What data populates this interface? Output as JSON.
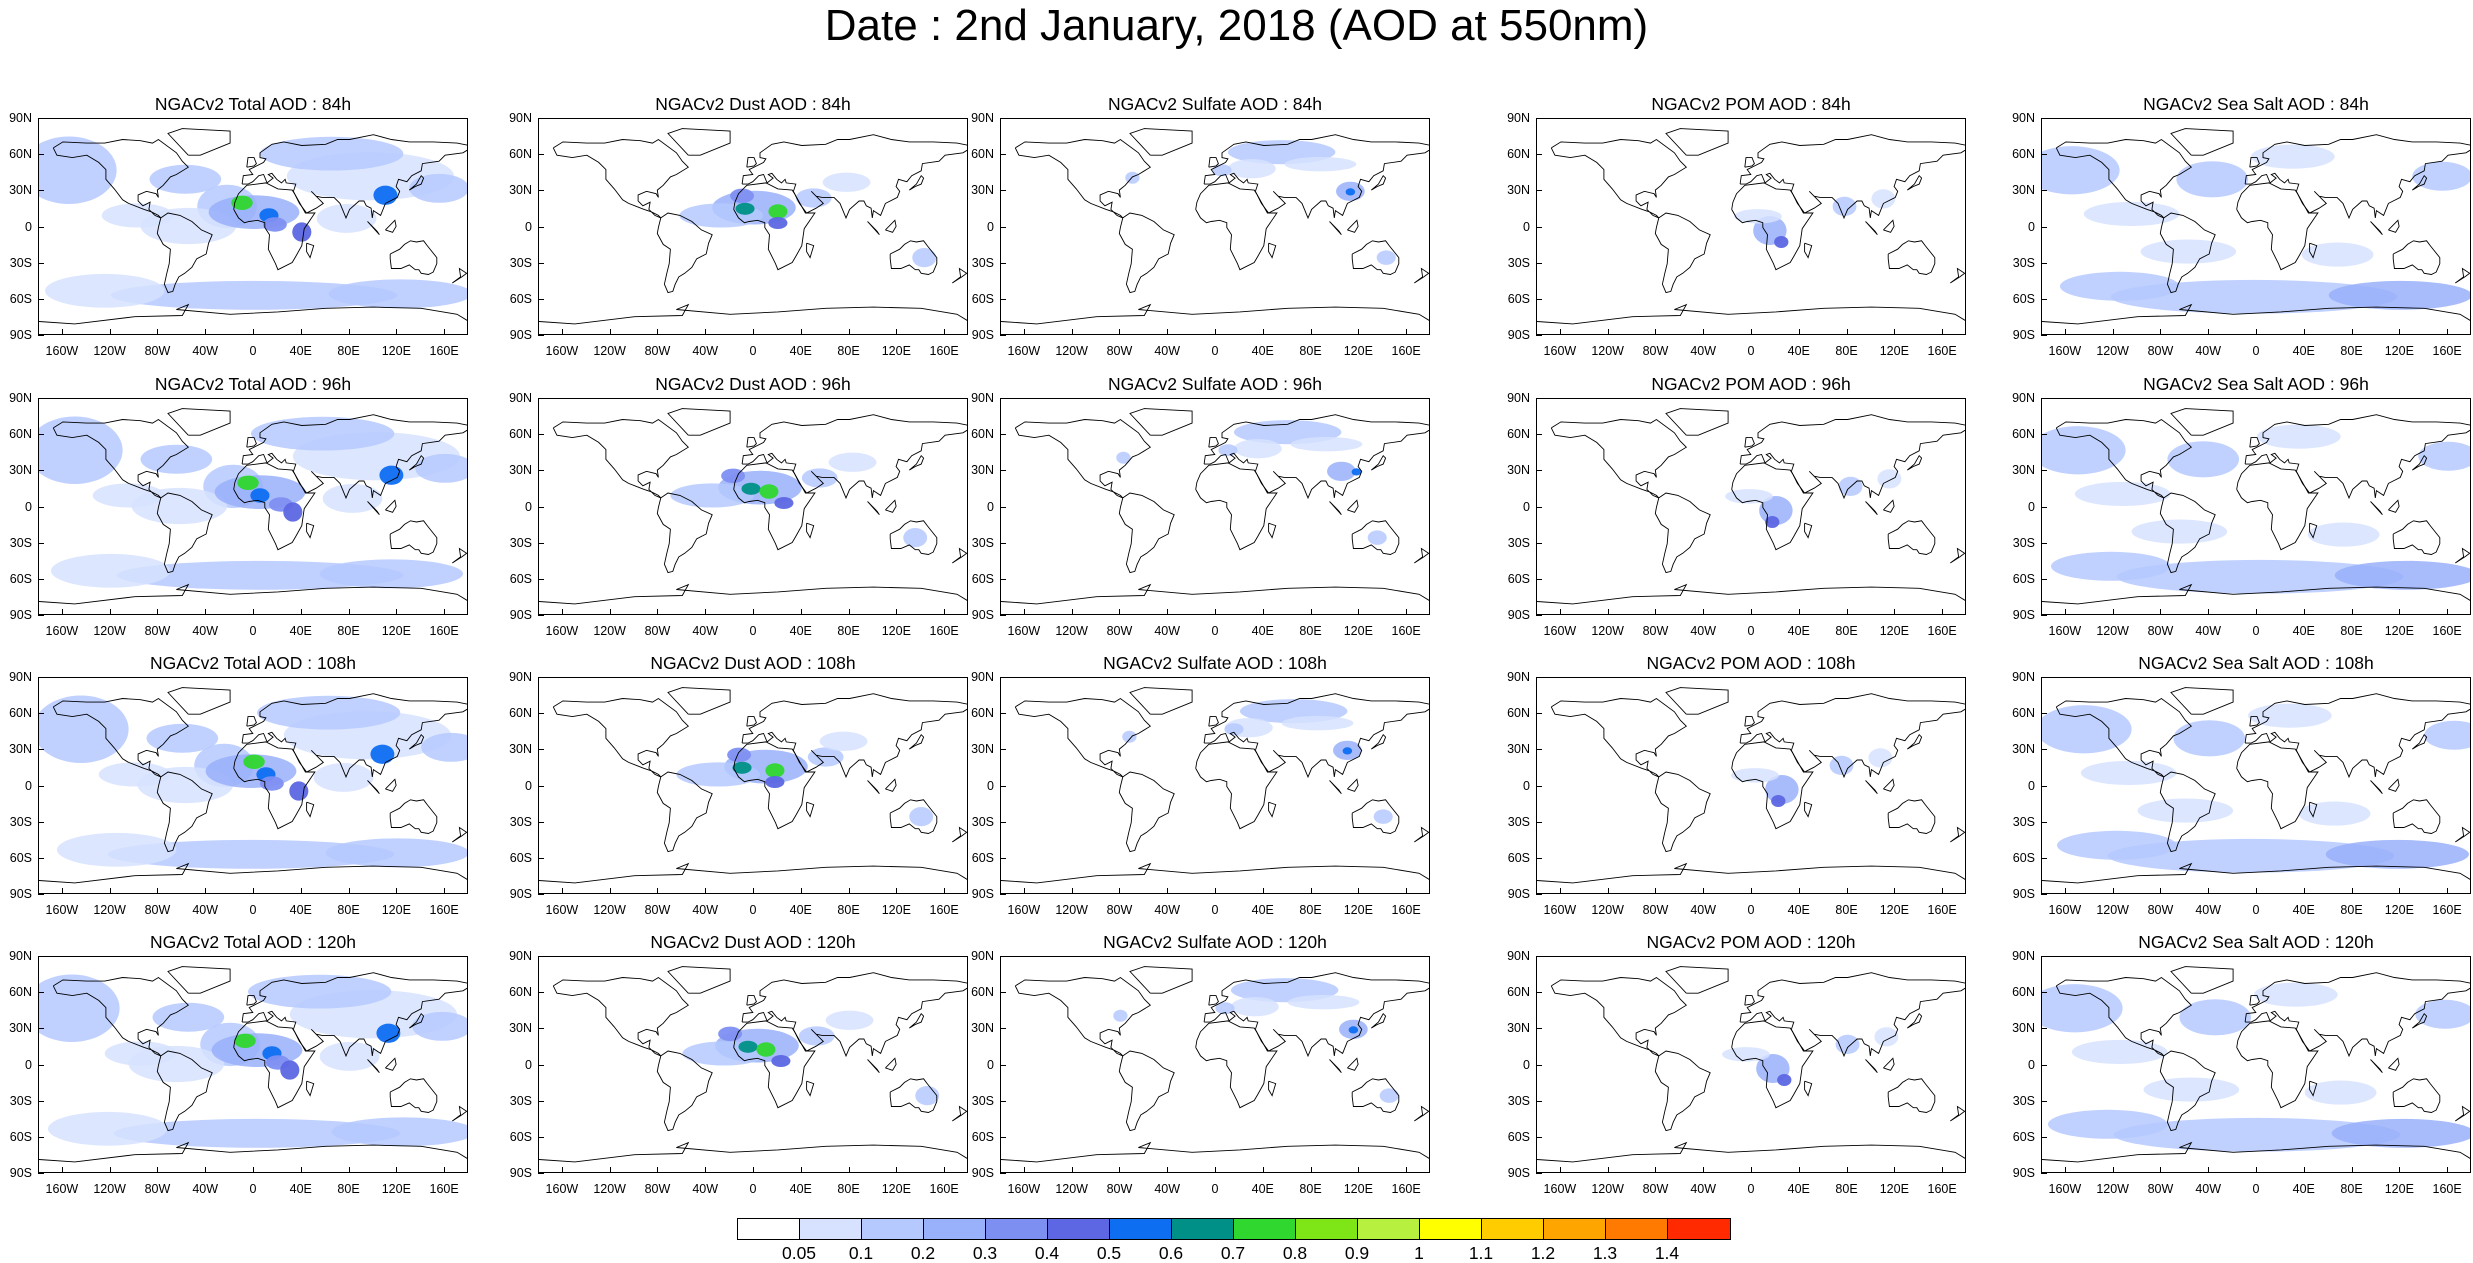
{
  "title": "Date : 2nd January, 2018 (AOD at 550nm)",
  "panels": [
    [
      "NGACv2 Total AOD : 84h",
      "NGACv2 Dust AOD : 84h",
      "NGACv2 Sulfate AOD : 84h",
      "NGACv2 POM AOD : 84h",
      "NGACv2 Sea Salt AOD : 84h"
    ],
    [
      "NGACv2 Total AOD : 96h",
      "NGACv2 Dust AOD : 96h",
      "NGACv2 Sulfate AOD : 96h",
      "NGACv2 POM AOD : 96h",
      "NGACv2 Sea Salt AOD : 96h"
    ],
    [
      "NGACv2 Total AOD : 108h",
      "NGACv2 Dust AOD : 108h",
      "NGACv2 Sulfate AOD : 108h",
      "NGACv2 POM AOD : 108h",
      "NGACv2 Sea Salt AOD : 108h"
    ],
    [
      "NGACv2 Total AOD : 120h",
      "NGACv2 Dust AOD : 120h",
      "NGACv2 Sulfate AOD : 120h",
      "NGACv2 POM AOD : 120h",
      "NGACv2 Sea Salt  AOD : 120h"
    ]
  ],
  "axes": {
    "lat_labels": [
      "90N",
      "60N",
      "30N",
      "0",
      "30S",
      "60S",
      "90S"
    ],
    "lon_labels": [
      "160W",
      "120W",
      "80W",
      "40W",
      "0",
      "40E",
      "80E",
      "120E",
      "160E"
    ]
  },
  "colorbar": {
    "labels": [
      "0.05",
      "0.1",
      "0.2",
      "0.3",
      "0.4",
      "0.5",
      "0.6",
      "0.7",
      "0.8",
      "0.9",
      "1",
      "1.1",
      "1.2",
      "1.3",
      "1.4"
    ],
    "colors": [
      "#ffffff",
      "#d6e2ff",
      "#b5c9ff",
      "#99b0fa",
      "#7e8ff2",
      "#5d67e3",
      "#0d6ef2",
      "#009087",
      "#2fd72f",
      "#7ee617",
      "#b8f040",
      "#ffff00",
      "#ffcc00",
      "#ffa500",
      "#ff7a00",
      "#ff2a00"
    ]
  }
}
